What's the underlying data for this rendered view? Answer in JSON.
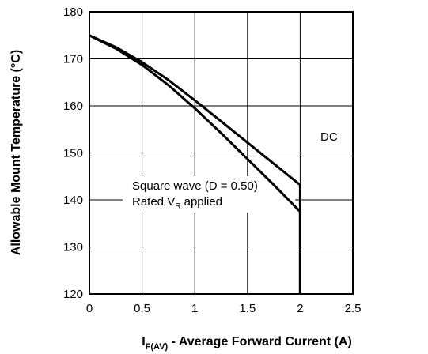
{
  "chart_data": {
    "type": "line",
    "title": "",
    "xlabel": {
      "main": "I",
      "subscript": "F(AV)",
      "rest": " - Average Forward Current (A)"
    },
    "ylabel": "Allowable Mount Temperature (°C)",
    "xlim": [
      0,
      2.5
    ],
    "ylim": [
      120,
      180
    ],
    "x_ticks": [
      0,
      0.5,
      1,
      1.5,
      2,
      2.5
    ],
    "x_tick_labels": [
      "0",
      "0.5",
      "1",
      "1.5",
      "2",
      "2.5"
    ],
    "y_ticks": [
      120,
      130,
      140,
      150,
      160,
      170,
      180
    ],
    "y_tick_labels": [
      "120",
      "130",
      "140",
      "150",
      "160",
      "170",
      "180"
    ],
    "grid": true,
    "series": [
      {
        "name": "DC",
        "x": [
          0,
          0.25,
          0.5,
          0.75,
          1,
          1.25,
          1.5,
          1.75,
          2,
          2,
          2
        ],
        "y": [
          175,
          172.5,
          169.3,
          165.5,
          161.2,
          156.7,
          152.2,
          147.7,
          143.2,
          130,
          120
        ]
      },
      {
        "name": "Square wave (D = 0.50)",
        "x": [
          0,
          0.25,
          0.5,
          0.75,
          1,
          1.25,
          1.5,
          1.75,
          2,
          2,
          2
        ],
        "y": [
          175,
          172.2,
          168.7,
          164.4,
          159.5,
          154.2,
          148.7,
          143.2,
          137.5,
          130,
          120
        ]
      }
    ],
    "annotations": {
      "dc_label": "DC",
      "square_line1": "Square wave (D = 0.50)",
      "square_line2_main": "Rated V",
      "square_line2_sub": "R",
      "square_line2_rest": " applied"
    }
  }
}
